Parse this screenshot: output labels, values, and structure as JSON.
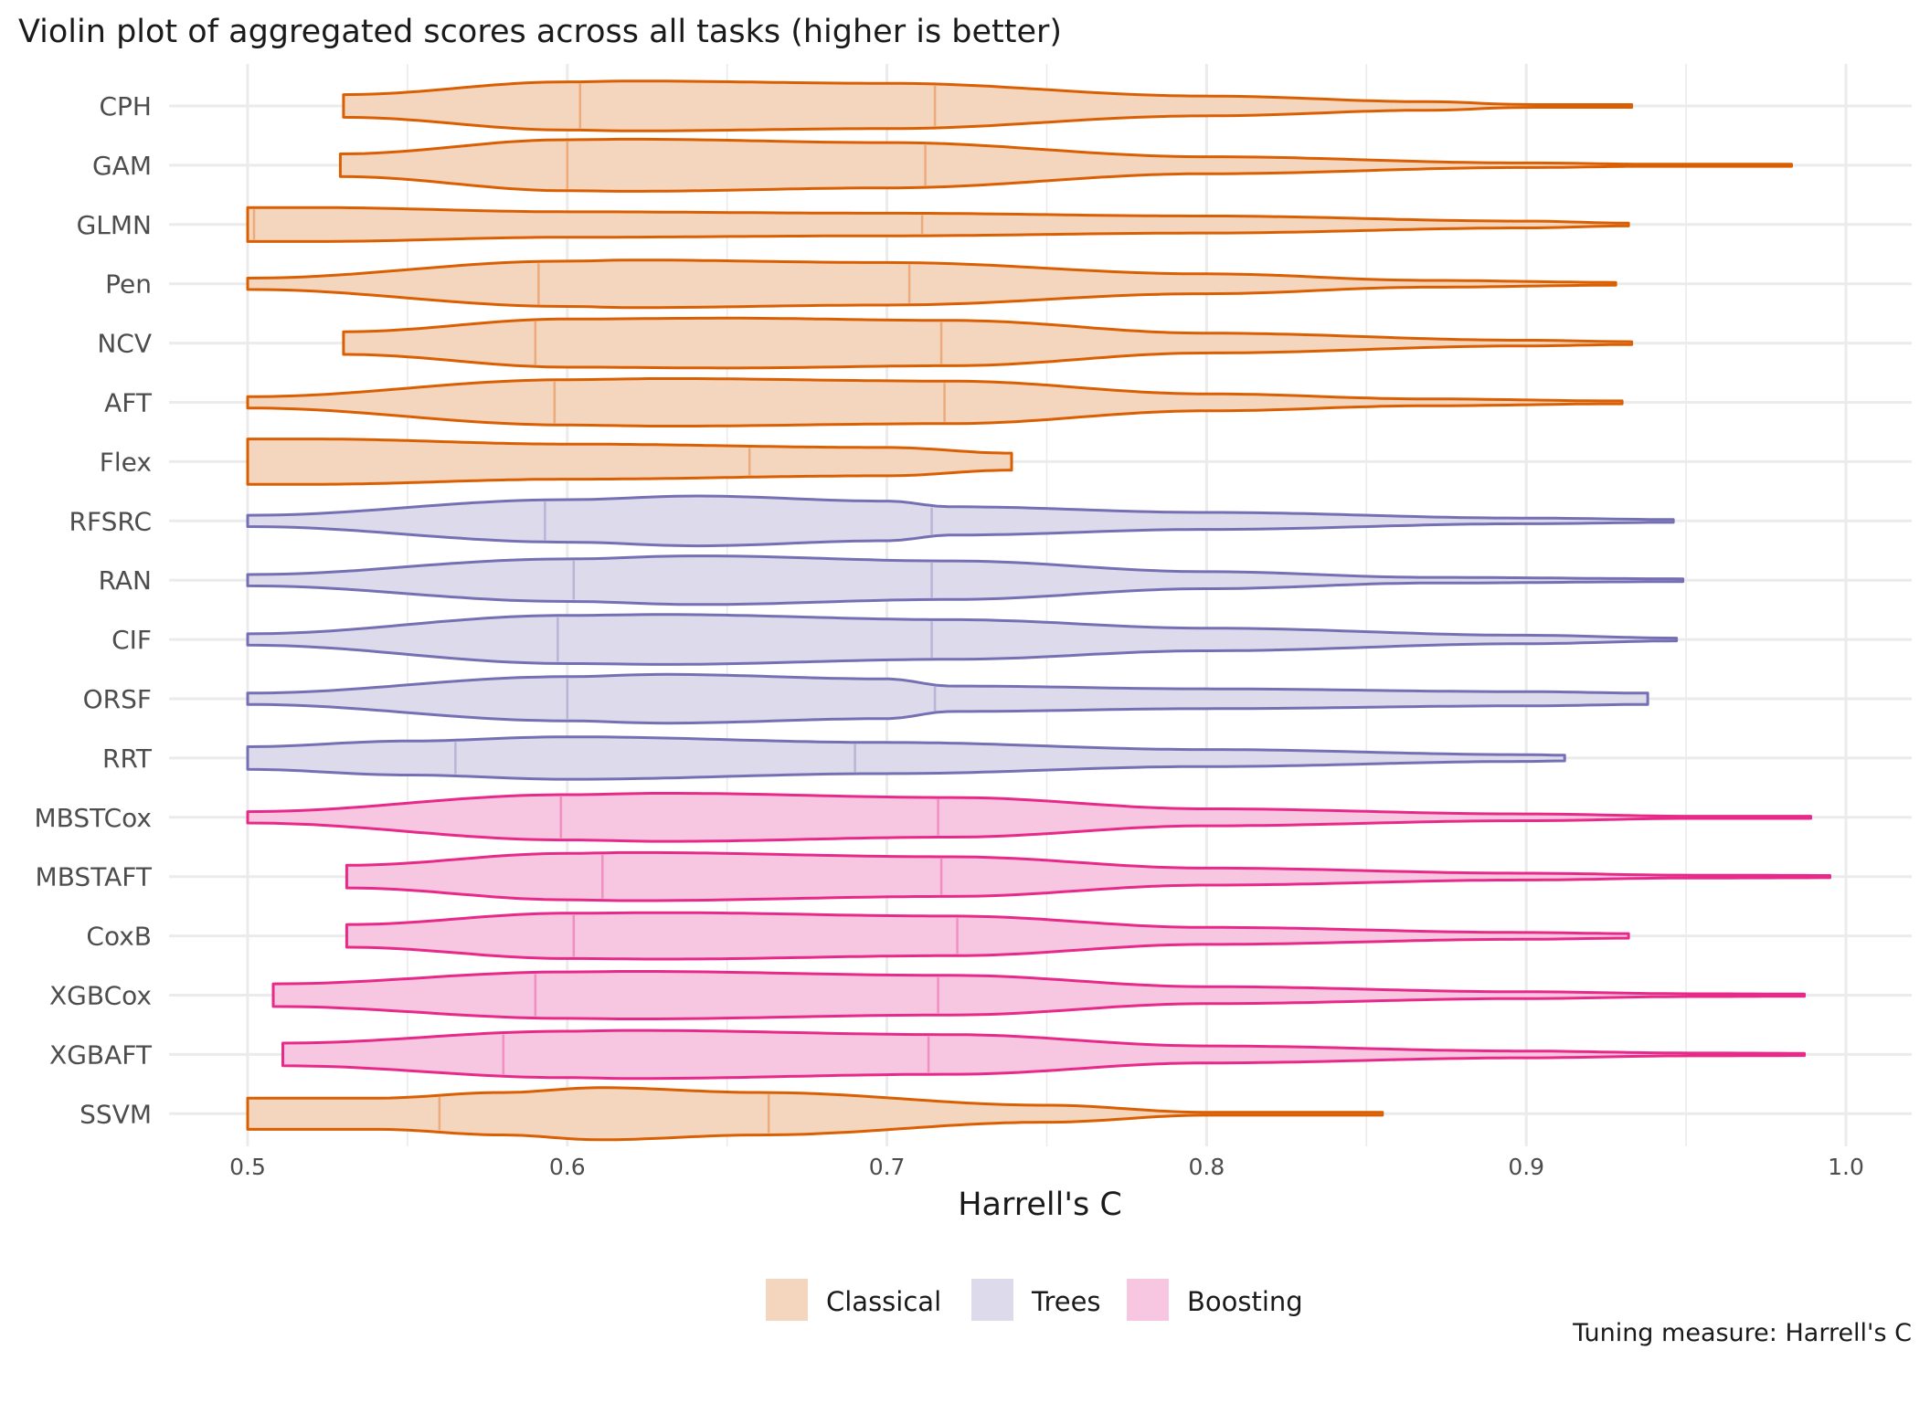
{
  "chart_data": {
    "type": "violin",
    "title": "Violin plot of aggregated scores across all tasks (higher is better)",
    "xlabel": "Harrell's C",
    "ylabel": "",
    "xlim": [
      0.475,
      1.02
    ],
    "xticks": [
      "0.5",
      "0.6",
      "0.7",
      "0.8",
      "0.9",
      "1.0"
    ],
    "xtick_values": [
      0.5,
      0.6,
      0.7,
      0.8,
      0.9,
      1.0
    ],
    "grid": true,
    "caption": "Tuning measure: Harrell's C",
    "legend": {
      "position": "bottom",
      "entries": [
        {
          "name": "Classical",
          "fill": "#f4d5bd",
          "stroke": "#d95f02"
        },
        {
          "name": "Trees",
          "fill": "#dcdaeb",
          "stroke": "#7570b3"
        },
        {
          "name": "Boosting",
          "fill": "#f7c6e0",
          "stroke": "#e7298a"
        }
      ]
    },
    "groups": {
      "Classical": {
        "fill": "#f4d5bd",
        "stroke": "#d95f02"
      },
      "Trees": {
        "fill": "#dcdaeb",
        "stroke": "#7570b3"
      },
      "Boosting": {
        "fill": "#f7c6e0",
        "stroke": "#e7298a"
      }
    },
    "series": [
      {
        "name": "CPH",
        "group": "Classical",
        "min": 0.53,
        "max": 0.933,
        "q25": 0.604,
        "q75": 0.715,
        "density": [
          [
            0.53,
            0.4
          ],
          [
            0.6,
            0.85
          ],
          [
            0.62,
            0.88
          ],
          [
            0.7,
            0.8
          ],
          [
            0.8,
            0.35
          ],
          [
            0.87,
            0.15
          ],
          [
            0.9,
            0.05
          ],
          [
            0.933,
            0.05
          ]
        ]
      },
      {
        "name": "GAM",
        "group": "Classical",
        "min": 0.529,
        "max": 0.983,
        "q25": 0.6,
        "q75": 0.712,
        "density": [
          [
            0.529,
            0.4
          ],
          [
            0.6,
            0.9
          ],
          [
            0.62,
            0.92
          ],
          [
            0.7,
            0.8
          ],
          [
            0.8,
            0.3
          ],
          [
            0.9,
            0.08
          ],
          [
            0.95,
            0.02
          ],
          [
            0.983,
            0.02
          ]
        ]
      },
      {
        "name": "GLMN",
        "group": "Classical",
        "min": 0.5,
        "max": 0.932,
        "q25": 0.502,
        "q75": 0.711,
        "density": [
          [
            0.5,
            0.6
          ],
          [
            0.52,
            0.6
          ],
          [
            0.6,
            0.45
          ],
          [
            0.7,
            0.4
          ],
          [
            0.8,
            0.3
          ],
          [
            0.9,
            0.12
          ],
          [
            0.932,
            0.05
          ]
        ]
      },
      {
        "name": "Pen",
        "group": "Classical",
        "min": 0.5,
        "max": 0.928,
        "q25": 0.591,
        "q75": 0.707,
        "density": [
          [
            0.5,
            0.2
          ],
          [
            0.6,
            0.8
          ],
          [
            0.62,
            0.84
          ],
          [
            0.7,
            0.75
          ],
          [
            0.8,
            0.35
          ],
          [
            0.87,
            0.12
          ],
          [
            0.928,
            0.05
          ]
        ]
      },
      {
        "name": "NCV",
        "group": "Classical",
        "min": 0.53,
        "max": 0.933,
        "q25": 0.59,
        "q75": 0.717,
        "density": [
          [
            0.53,
            0.4
          ],
          [
            0.6,
            0.85
          ],
          [
            0.65,
            0.88
          ],
          [
            0.72,
            0.8
          ],
          [
            0.8,
            0.35
          ],
          [
            0.9,
            0.1
          ],
          [
            0.933,
            0.05
          ]
        ]
      },
      {
        "name": "AFT",
        "group": "Classical",
        "min": 0.5,
        "max": 0.93,
        "q25": 0.596,
        "q75": 0.718,
        "density": [
          [
            0.5,
            0.2
          ],
          [
            0.6,
            0.8
          ],
          [
            0.63,
            0.84
          ],
          [
            0.72,
            0.75
          ],
          [
            0.8,
            0.3
          ],
          [
            0.87,
            0.12
          ],
          [
            0.93,
            0.05
          ]
        ]
      },
      {
        "name": "Flex",
        "group": "Classical",
        "min": 0.5,
        "max": 0.739,
        "q25": null,
        "q75": 0.657,
        "density": [
          [
            0.5,
            0.8
          ],
          [
            0.52,
            0.8
          ],
          [
            0.6,
            0.62
          ],
          [
            0.7,
            0.5
          ],
          [
            0.739,
            0.3
          ]
        ]
      },
      {
        "name": "RFSRC",
        "group": "Trees",
        "min": 0.5,
        "max": 0.946,
        "q25": 0.593,
        "q75": 0.714,
        "density": [
          [
            0.5,
            0.2
          ],
          [
            0.6,
            0.75
          ],
          [
            0.64,
            0.88
          ],
          [
            0.7,
            0.7
          ],
          [
            0.72,
            0.5
          ],
          [
            0.8,
            0.3
          ],
          [
            0.9,
            0.1
          ],
          [
            0.946,
            0.05
          ]
        ]
      },
      {
        "name": "RAN",
        "group": "Trees",
        "min": 0.5,
        "max": 0.949,
        "q25": 0.602,
        "q75": 0.714,
        "density": [
          [
            0.5,
            0.2
          ],
          [
            0.6,
            0.75
          ],
          [
            0.64,
            0.86
          ],
          [
            0.72,
            0.68
          ],
          [
            0.8,
            0.3
          ],
          [
            0.87,
            0.1
          ],
          [
            0.949,
            0.05
          ]
        ]
      },
      {
        "name": "CIF",
        "group": "Trees",
        "min": 0.5,
        "max": 0.947,
        "q25": 0.597,
        "q75": 0.714,
        "density": [
          [
            0.5,
            0.2
          ],
          [
            0.6,
            0.85
          ],
          [
            0.63,
            0.88
          ],
          [
            0.72,
            0.7
          ],
          [
            0.8,
            0.4
          ],
          [
            0.9,
            0.15
          ],
          [
            0.947,
            0.05
          ]
        ]
      },
      {
        "name": "ORSF",
        "group": "Trees",
        "min": 0.5,
        "max": 0.938,
        "q25": 0.6,
        "q75": 0.715,
        "density": [
          [
            0.5,
            0.2
          ],
          [
            0.6,
            0.78
          ],
          [
            0.63,
            0.86
          ],
          [
            0.7,
            0.7
          ],
          [
            0.72,
            0.45
          ],
          [
            0.8,
            0.35
          ],
          [
            0.9,
            0.25
          ],
          [
            0.938,
            0.2
          ]
        ]
      },
      {
        "name": "RRT",
        "group": "Trees",
        "min": 0.5,
        "max": 0.912,
        "q25": 0.565,
        "q75": 0.69,
        "density": [
          [
            0.5,
            0.4
          ],
          [
            0.55,
            0.6
          ],
          [
            0.6,
            0.75
          ],
          [
            0.7,
            0.55
          ],
          [
            0.8,
            0.3
          ],
          [
            0.9,
            0.12
          ],
          [
            0.912,
            0.1
          ]
        ]
      },
      {
        "name": "MBSTCox",
        "group": "Boosting",
        "min": 0.5,
        "max": 0.989,
        "q25": 0.598,
        "q75": 0.716,
        "density": [
          [
            0.5,
            0.2
          ],
          [
            0.6,
            0.8
          ],
          [
            0.63,
            0.85
          ],
          [
            0.72,
            0.7
          ],
          [
            0.8,
            0.3
          ],
          [
            0.9,
            0.12
          ],
          [
            0.95,
            0.04
          ],
          [
            0.989,
            0.04
          ]
        ]
      },
      {
        "name": "MBSTAFT",
        "group": "Boosting",
        "min": 0.531,
        "max": 0.995,
        "q25": 0.611,
        "q75": 0.717,
        "density": [
          [
            0.531,
            0.4
          ],
          [
            0.6,
            0.82
          ],
          [
            0.62,
            0.85
          ],
          [
            0.72,
            0.7
          ],
          [
            0.8,
            0.3
          ],
          [
            0.9,
            0.12
          ],
          [
            0.95,
            0.05
          ],
          [
            0.995,
            0.04
          ]
        ]
      },
      {
        "name": "CoxB",
        "group": "Boosting",
        "min": 0.531,
        "max": 0.932,
        "q25": 0.602,
        "q75": 0.722,
        "density": [
          [
            0.531,
            0.4
          ],
          [
            0.6,
            0.8
          ],
          [
            0.63,
            0.82
          ],
          [
            0.72,
            0.7
          ],
          [
            0.8,
            0.3
          ],
          [
            0.9,
            0.12
          ],
          [
            0.932,
            0.08
          ]
        ]
      },
      {
        "name": "XGBCox",
        "group": "Boosting",
        "min": 0.508,
        "max": 0.987,
        "q25": 0.59,
        "q75": 0.716,
        "density": [
          [
            0.508,
            0.4
          ],
          [
            0.6,
            0.82
          ],
          [
            0.62,
            0.84
          ],
          [
            0.72,
            0.7
          ],
          [
            0.8,
            0.3
          ],
          [
            0.9,
            0.12
          ],
          [
            0.95,
            0.05
          ],
          [
            0.987,
            0.04
          ]
        ]
      },
      {
        "name": "XGBAFT",
        "group": "Boosting",
        "min": 0.511,
        "max": 0.987,
        "q25": 0.58,
        "q75": 0.713,
        "density": [
          [
            0.511,
            0.4
          ],
          [
            0.6,
            0.82
          ],
          [
            0.62,
            0.85
          ],
          [
            0.72,
            0.7
          ],
          [
            0.8,
            0.3
          ],
          [
            0.9,
            0.12
          ],
          [
            0.95,
            0.05
          ],
          [
            0.987,
            0.04
          ]
        ]
      },
      {
        "name": "SSVM",
        "group": "Classical",
        "min": 0.5,
        "max": 0.855,
        "q25": 0.56,
        "q75": 0.663,
        "density": [
          [
            0.5,
            0.55
          ],
          [
            0.54,
            0.55
          ],
          [
            0.58,
            0.75
          ],
          [
            0.61,
            0.92
          ],
          [
            0.66,
            0.75
          ],
          [
            0.75,
            0.3
          ],
          [
            0.8,
            0.05
          ],
          [
            0.855,
            0.05
          ]
        ]
      }
    ]
  }
}
